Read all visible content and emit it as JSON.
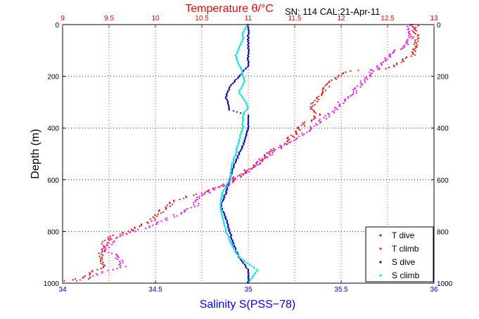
{
  "chart_data": {
    "type": "scatter",
    "title": "Temperature θ/°C",
    "annotation": "SN: 114  CAL:21-Apr-11",
    "ylabel": "Depth (m)",
    "xlabel": "Salinity S(PSS−78)",
    "ylim": [
      0,
      1000
    ],
    "y_reversed": true,
    "x_top": {
      "label": "Temperature θ/°C",
      "range": [
        9,
        13
      ],
      "ticks": [
        "9",
        "9.5",
        "10",
        "10.5",
        "11",
        "11.5",
        "12",
        "12.5",
        "13"
      ],
      "color": "#ff0000"
    },
    "x_bottom": {
      "label": "Salinity S(PSS−78)",
      "range": [
        34,
        36
      ],
      "ticks": [
        "34",
        "34.5",
        "35",
        "35.5",
        "36"
      ],
      "color": "#0000ff"
    },
    "y_ticks": [
      "0",
      "200",
      "400",
      "600",
      "800",
      "1000"
    ],
    "grid": true,
    "legend_position": "bottom-right",
    "colors": {
      "t_dive": "#ff0000",
      "t_climb": "#ff00ff",
      "s_dive": "#0000cc",
      "s_climb": "#00e5e5",
      "top_axis": "#ff0000",
      "bottom_axis": "#0000ff",
      "grid": "#000000"
    },
    "series": [
      {
        "name": "T dive",
        "axis": "temperature",
        "color": "#ff0000",
        "points": [
          [
            12.8,
            0
          ],
          [
            12.8,
            40
          ],
          [
            12.8,
            80
          ],
          [
            12.8,
            110
          ],
          [
            12.6,
            150
          ],
          [
            12.5,
            170
          ],
          [
            12.3,
            175
          ],
          [
            12.1,
            180
          ],
          [
            12.0,
            195
          ],
          [
            11.9,
            215
          ],
          [
            11.85,
            240
          ],
          [
            11.8,
            270
          ],
          [
            11.7,
            310
          ],
          [
            11.7,
            330
          ],
          [
            11.75,
            350
          ],
          [
            11.6,
            385
          ],
          [
            11.5,
            420
          ],
          [
            11.4,
            460
          ],
          [
            11.2,
            500
          ],
          [
            11.1,
            540
          ],
          [
            10.95,
            570
          ],
          [
            10.8,
            610
          ],
          [
            10.6,
            640
          ],
          [
            10.4,
            660
          ],
          [
            10.2,
            680
          ],
          [
            10.1,
            710
          ],
          [
            9.95,
            760
          ],
          [
            9.7,
            800
          ],
          [
            9.55,
            815
          ],
          [
            9.45,
            835
          ],
          [
            9.45,
            860
          ],
          [
            9.4,
            900
          ],
          [
            9.45,
            935
          ],
          [
            9.3,
            960
          ],
          [
            9.2,
            980
          ],
          [
            9.0,
            995
          ]
        ]
      },
      {
        "name": "T climb",
        "axis": "temperature",
        "color": "#ff00ff",
        "points": [
          [
            12.75,
            0
          ],
          [
            12.75,
            50
          ],
          [
            12.7,
            80
          ],
          [
            12.55,
            110
          ],
          [
            12.4,
            160
          ],
          [
            12.3,
            200
          ],
          [
            12.2,
            230
          ],
          [
            12.15,
            260
          ],
          [
            12.0,
            300
          ],
          [
            11.9,
            340
          ],
          [
            11.75,
            380
          ],
          [
            11.6,
            420
          ],
          [
            11.4,
            460
          ],
          [
            11.2,
            510
          ],
          [
            11.05,
            550
          ],
          [
            10.9,
            590
          ],
          [
            10.75,
            620
          ],
          [
            10.55,
            650
          ],
          [
            10.4,
            680
          ],
          [
            10.45,
            700
          ],
          [
            10.2,
            740
          ],
          [
            9.95,
            780
          ],
          [
            9.75,
            800
          ],
          [
            9.55,
            830
          ],
          [
            9.45,
            870
          ],
          [
            9.6,
            900
          ],
          [
            9.65,
            940
          ],
          [
            9.4,
            960
          ],
          [
            9.3,
            980
          ],
          [
            9.1,
            995
          ]
        ]
      },
      {
        "name": "S dive",
        "axis": "salinity",
        "color": "#0000cc",
        "points": [
          [
            35.0,
            0
          ],
          [
            35.0,
            50
          ],
          [
            35.0,
            100
          ],
          [
            35.0,
            160
          ],
          [
            34.95,
            200
          ],
          [
            34.9,
            240
          ],
          [
            34.88,
            280
          ],
          [
            34.9,
            330
          ],
          [
            35.0,
            350
          ],
          [
            35.0,
            400
          ],
          [
            34.98,
            450
          ],
          [
            34.95,
            500
          ],
          [
            34.92,
            550
          ],
          [
            34.9,
            600
          ],
          [
            34.88,
            650
          ],
          [
            34.85,
            700
          ],
          [
            34.88,
            750
          ],
          [
            34.9,
            800
          ],
          [
            34.92,
            850
          ],
          [
            34.95,
            900
          ],
          [
            35.0,
            950
          ],
          [
            35.0,
            1000
          ]
        ]
      },
      {
        "name": "S climb",
        "axis": "salinity",
        "color": "#00e5e5",
        "points": [
          [
            35.0,
            0
          ],
          [
            34.97,
            30
          ],
          [
            34.97,
            60
          ],
          [
            34.93,
            120
          ],
          [
            34.96,
            170
          ],
          [
            34.98,
            220
          ],
          [
            34.95,
            260
          ],
          [
            35.0,
            320
          ],
          [
            34.97,
            350
          ],
          [
            34.97,
            400
          ],
          [
            34.95,
            450
          ],
          [
            34.93,
            500
          ],
          [
            34.91,
            550
          ],
          [
            34.9,
            600
          ],
          [
            34.86,
            650
          ],
          [
            34.85,
            700
          ],
          [
            34.86,
            750
          ],
          [
            34.88,
            800
          ],
          [
            34.91,
            850
          ],
          [
            34.95,
            900
          ],
          [
            35.05,
            950
          ],
          [
            35.0,
            1000
          ]
        ]
      }
    ]
  }
}
